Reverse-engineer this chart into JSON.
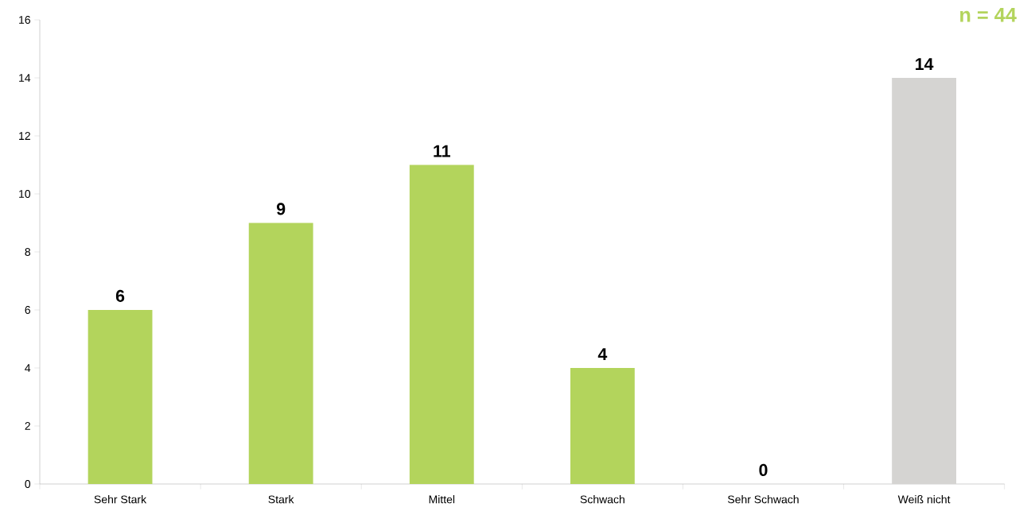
{
  "chart_data": {
    "type": "bar",
    "categories": [
      "Sehr Stark",
      "Stark",
      "Mittel",
      "Schwach",
      "Sehr Schwach",
      "Weiß nicht"
    ],
    "values": [
      6,
      9,
      11,
      4,
      0,
      14
    ],
    "colors": [
      "#b3d45c",
      "#b3d45c",
      "#b3d45c",
      "#b3d45c",
      "#b3d45c",
      "#d5d4d2"
    ],
    "ylim": [
      0,
      16
    ],
    "yticks": [
      0,
      2,
      4,
      6,
      8,
      10,
      12,
      14,
      16
    ],
    "data_labels": true,
    "grid": false,
    "annotations": [
      "n = 44"
    ]
  }
}
